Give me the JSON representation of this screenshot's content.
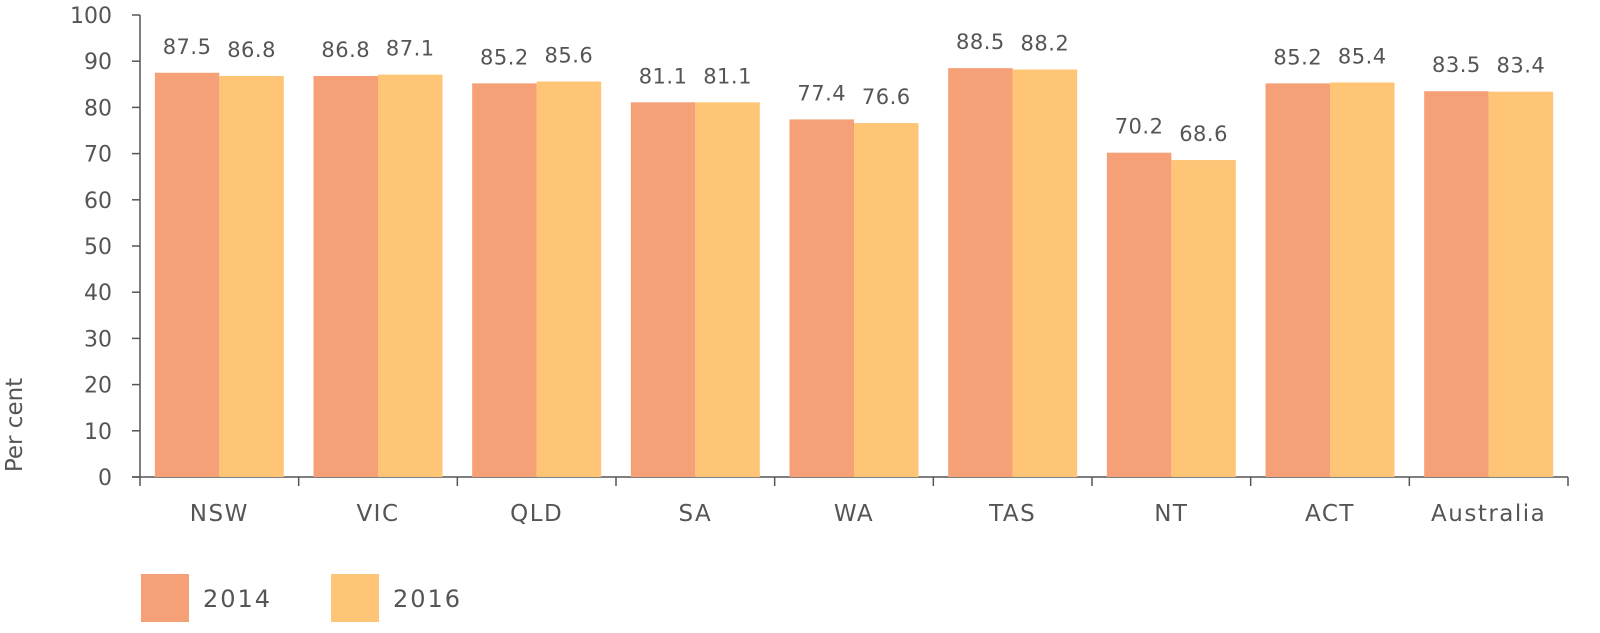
{
  "chart_data": {
    "type": "bar",
    "ylabel": "Per cent",
    "ylim": [
      0,
      100
    ],
    "yticks": [
      0,
      10,
      20,
      30,
      40,
      50,
      60,
      70,
      80,
      90,
      100
    ],
    "grid": false,
    "legend_position": "bottom-left",
    "categories": [
      "NSW",
      "VIC",
      "QLD",
      "SA",
      "WA",
      "TAS",
      "NT",
      "ACT",
      "Australia"
    ],
    "series": [
      {
        "name": "2014",
        "color": "#f6a077",
        "values": [
          87.5,
          86.8,
          85.2,
          81.1,
          77.4,
          88.5,
          70.2,
          85.2,
          83.5
        ],
        "labels": [
          "87.5",
          "86.8",
          "85.2",
          "81.1",
          "77.4",
          "88.5",
          "70.2",
          "85.2",
          "83.5"
        ]
      },
      {
        "name": "2016",
        "color": "#fdc575",
        "values": [
          86.8,
          87.1,
          85.6,
          81.1,
          76.6,
          88.2,
          68.6,
          85.4,
          83.4
        ],
        "labels": [
          "86.8",
          "87.1",
          "85.6",
          "81.1",
          "76.6",
          "88.2",
          "68.6",
          "85.4",
          "83.4"
        ]
      }
    ]
  }
}
